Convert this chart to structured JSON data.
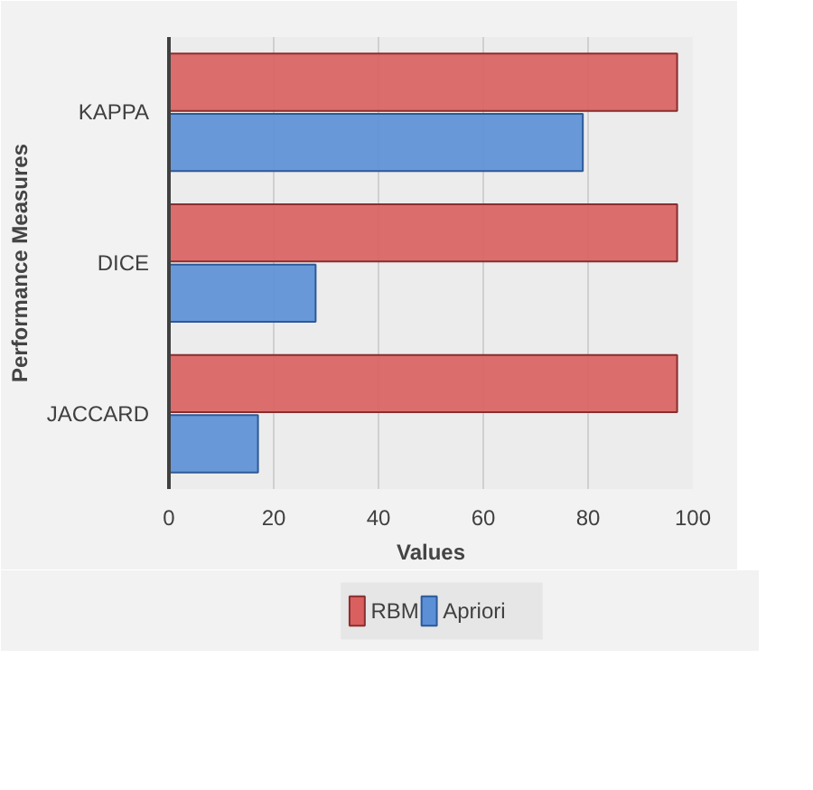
{
  "chart_data": {
    "type": "bar",
    "orientation": "horizontal",
    "xlabel": "Values",
    "ylabel": "Performance Measures",
    "categories": [
      "KAPPA",
      "DICE",
      "JACCARD"
    ],
    "series": [
      {
        "name": "RBM",
        "color": "#d9605f",
        "values": [
          97,
          97,
          97
        ]
      },
      {
        "name": "Apriori",
        "color": "#5b8fd6",
        "values": [
          79,
          28,
          17
        ]
      }
    ],
    "xlim": [
      0,
      100
    ],
    "xticks": [
      0,
      20,
      40,
      60,
      80,
      100
    ],
    "grid": "x",
    "legend": "bottom"
  }
}
